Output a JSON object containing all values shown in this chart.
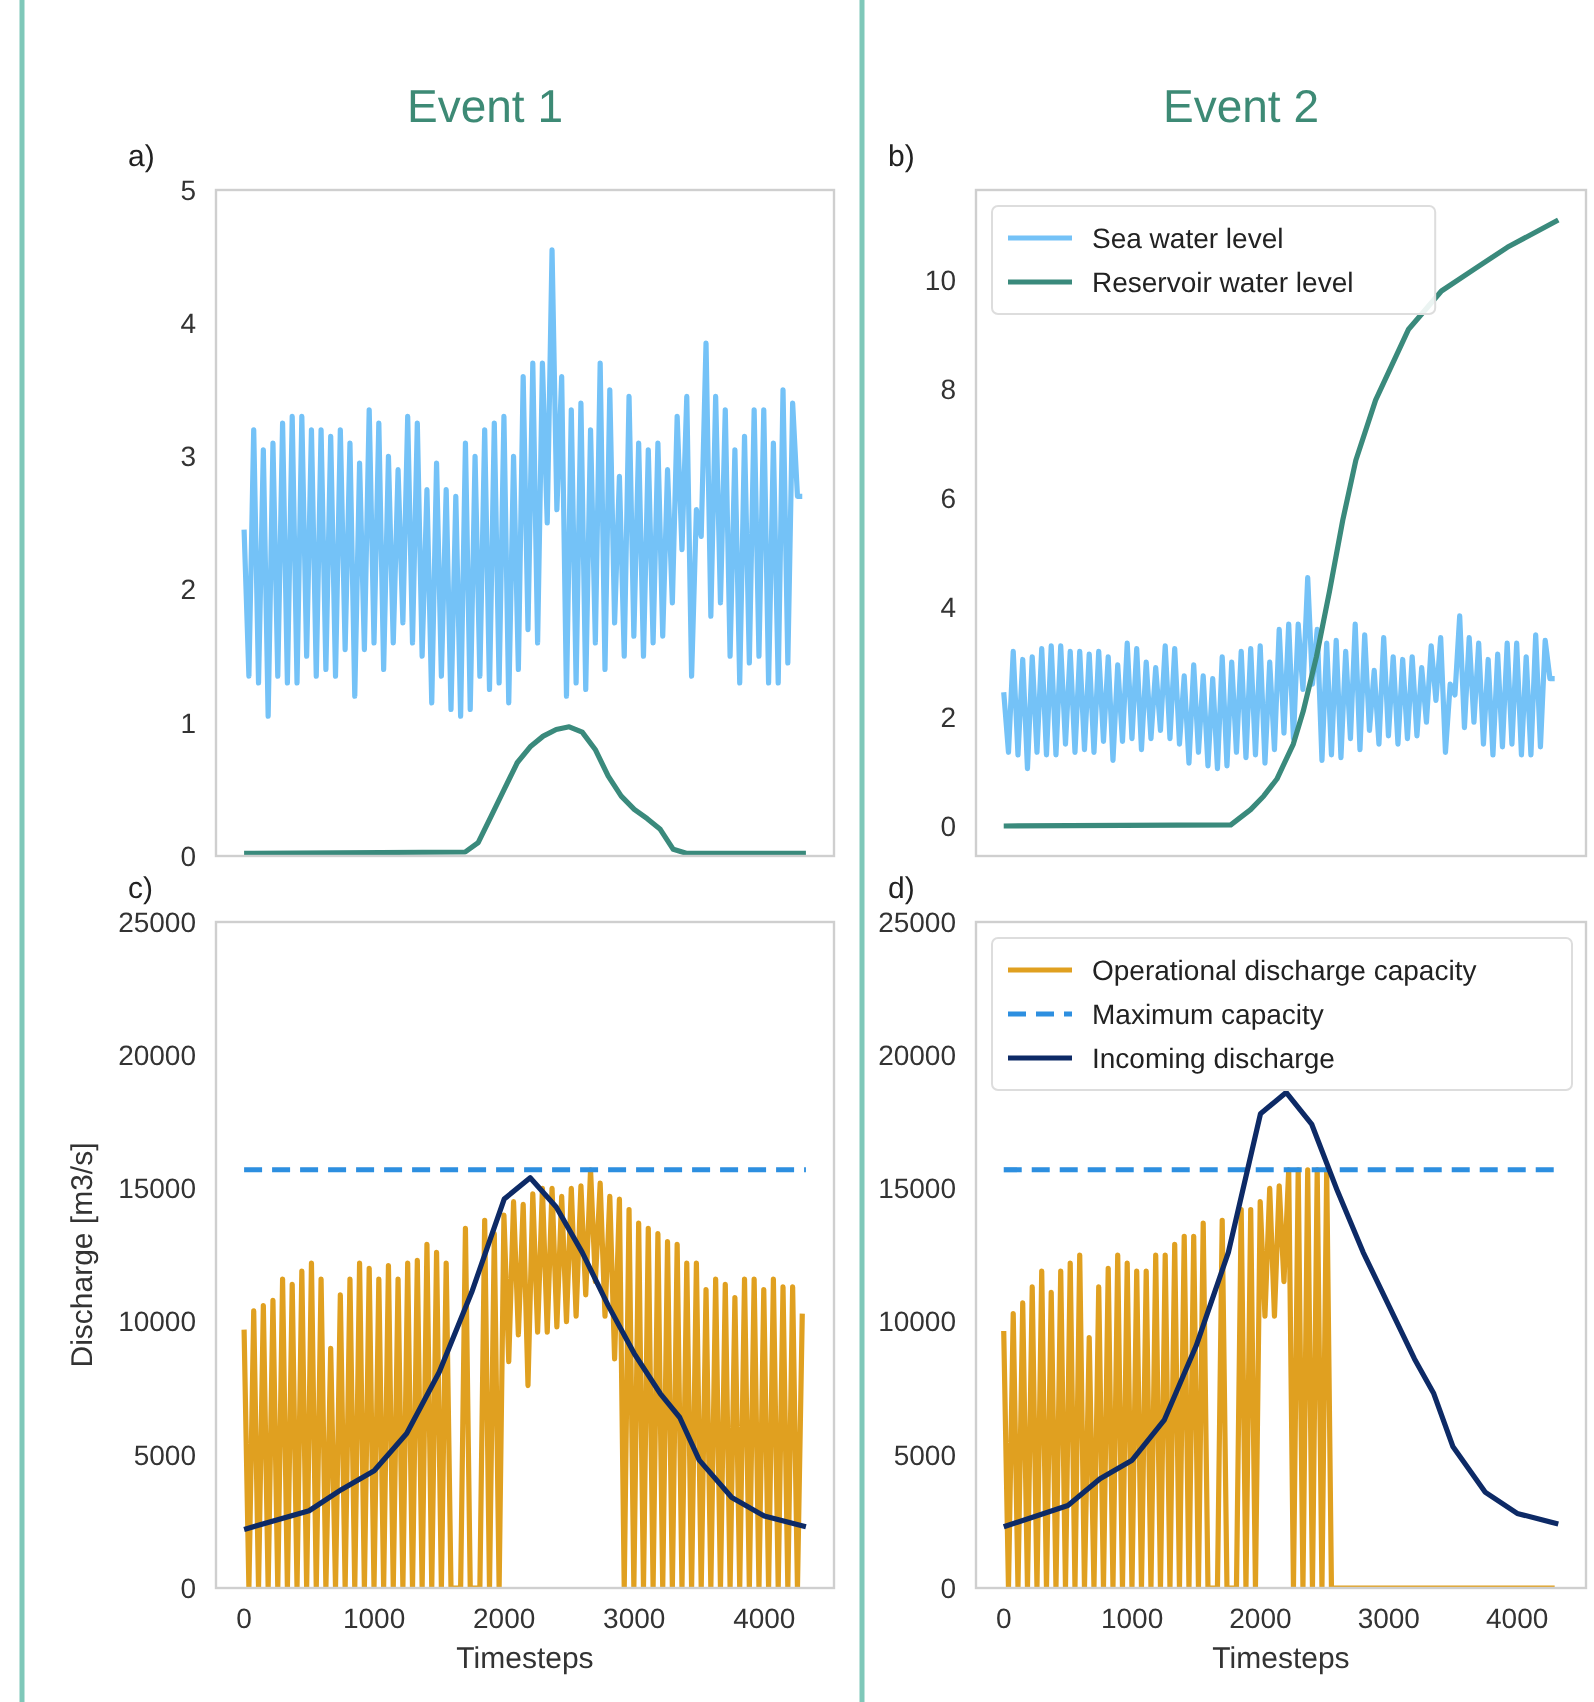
{
  "chart_data": [
    {
      "type": "line",
      "title": "Event 1",
      "annotations": [
        "a)"
      ],
      "xlim": [
        -216,
        4536
      ],
      "ylim": [
        0,
        5
      ],
      "yticks": [
        0,
        1,
        2,
        3,
        4,
        5
      ],
      "tick_labels": "y",
      "grid": false,
      "legend": false,
      "x": [
        0,
        37,
        74,
        111,
        148,
        185,
        222,
        259,
        296,
        333,
        370,
        407,
        444,
        481,
        518,
        555,
        592,
        629,
        666,
        703,
        740,
        777,
        814,
        851,
        888,
        925,
        962,
        999,
        1036,
        1073,
        1110,
        1147,
        1184,
        1221,
        1258,
        1295,
        1332,
        1369,
        1406,
        1443,
        1480,
        1517,
        1554,
        1591,
        1628,
        1665,
        1702,
        1739,
        1776,
        1813,
        1850,
        1887,
        1924,
        1961,
        1998,
        2035,
        2072,
        2109,
        2146,
        2183,
        2220,
        2257,
        2294,
        2331,
        2368,
        2405,
        2442,
        2479,
        2516,
        2553,
        2590,
        2627,
        2664,
        2701,
        2738,
        2775,
        2812,
        2849,
        2886,
        2923,
        2960,
        2997,
        3034,
        3071,
        3108,
        3145,
        3182,
        3219,
        3256,
        3293,
        3330,
        3367,
        3404,
        3441,
        3478,
        3515,
        3552,
        3589,
        3626,
        3663,
        3700,
        3737,
        3774,
        3811,
        3848,
        3885,
        3922,
        3959,
        3996,
        4033,
        4070,
        4107,
        4144,
        4181,
        4218,
        4255,
        4292
      ],
      "series": [
        {
          "color": "#74c2f7",
          "values": [
            2.45,
            1.35,
            3.2,
            1.3,
            3.05,
            1.05,
            3.1,
            1.35,
            3.25,
            1.3,
            3.3,
            1.3,
            3.3,
            1.5,
            3.2,
            1.35,
            3.2,
            1.4,
            3.15,
            1.35,
            3.2,
            1.55,
            3.1,
            1.2,
            2.95,
            1.55,
            3.35,
            1.6,
            3.25,
            1.4,
            3.0,
            1.6,
            2.9,
            1.75,
            3.3,
            1.6,
            3.25,
            1.5,
            2.75,
            1.15,
            2.95,
            1.35,
            2.75,
            1.1,
            2.7,
            1.05,
            3.1,
            1.1,
            3.0,
            1.35,
            3.2,
            1.25,
            3.25,
            1.3,
            3.3,
            1.15,
            3.0,
            1.4,
            3.6,
            1.7,
            3.7,
            1.6,
            3.7,
            2.5,
            4.55,
            2.6,
            3.6,
            1.2,
            3.35,
            1.3,
            3.4,
            1.25,
            3.2,
            1.6,
            3.7,
            1.4,
            3.5,
            1.75,
            2.85,
            1.5,
            3.45,
            1.65,
            3.1,
            1.5,
            3.05,
            1.6,
            3.1,
            1.65,
            2.9,
            1.9,
            3.3,
            2.3,
            3.45,
            1.35,
            2.6,
            2.4,
            3.85,
            1.8,
            3.45,
            1.9,
            3.35,
            1.5,
            3.05,
            1.3,
            3.15,
            1.45,
            3.35,
            1.5,
            3.35,
            1.3,
            3.1,
            1.3,
            3.5,
            1.45,
            3.4,
            2.7,
            2.7
          ]
        },
        {
          "color": "#3a8a7c",
          "x": [
            0,
            1700,
            1800,
            1900,
            2000,
            2100,
            2200,
            2300,
            2400,
            2500,
            2600,
            2700,
            2800,
            2900,
            3000,
            3100,
            3200,
            3300,
            3400,
            4320
          ],
          "values": [
            0.02,
            0.03,
            0.1,
            0.3,
            0.5,
            0.7,
            0.82,
            0.9,
            0.95,
            0.97,
            0.93,
            0.8,
            0.6,
            0.45,
            0.35,
            0.28,
            0.2,
            0.05,
            0.02,
            0.02
          ]
        }
      ]
    },
    {
      "type": "line",
      "title": "Event 2",
      "annotations": [
        "b)"
      ],
      "xlim": [
        -216,
        4536
      ],
      "ylim": [
        -0.55,
        11.65
      ],
      "yticks": [
        0,
        2,
        4,
        6,
        8,
        10
      ],
      "tick_labels": "y",
      "grid": false,
      "legend": "top left",
      "x": [
        0,
        37,
        74,
        111,
        148,
        185,
        222,
        259,
        296,
        333,
        370,
        407,
        444,
        481,
        518,
        555,
        592,
        629,
        666,
        703,
        740,
        777,
        814,
        851,
        888,
        925,
        962,
        999,
        1036,
        1073,
        1110,
        1147,
        1184,
        1221,
        1258,
        1295,
        1332,
        1369,
        1406,
        1443,
        1480,
        1517,
        1554,
        1591,
        1628,
        1665,
        1702,
        1739,
        1776,
        1813,
        1850,
        1887,
        1924,
        1961,
        1998,
        2035,
        2072,
        2109,
        2146,
        2183,
        2220,
        2257,
        2294,
        2331,
        2368,
        2405,
        2442,
        2479,
        2516,
        2553,
        2590,
        2627,
        2664,
        2701,
        2738,
        2775,
        2812,
        2849,
        2886,
        2923,
        2960,
        2997,
        3034,
        3071,
        3108,
        3145,
        3182,
        3219,
        3256,
        3293,
        3330,
        3367,
        3404,
        3441,
        3478,
        3515,
        3552,
        3589,
        3626,
        3663,
        3700,
        3737,
        3774,
        3811,
        3848,
        3885,
        3922,
        3959,
        3996,
        4033,
        4070,
        4107,
        4144,
        4181,
        4218,
        4255,
        4292
      ],
      "series": [
        {
          "name": "Sea water level",
          "color": "#74c2f7",
          "values": [
            2.45,
            1.35,
            3.2,
            1.3,
            3.05,
            1.05,
            3.1,
            1.35,
            3.25,
            1.3,
            3.3,
            1.3,
            3.3,
            1.5,
            3.2,
            1.35,
            3.2,
            1.4,
            3.15,
            1.35,
            3.2,
            1.55,
            3.1,
            1.2,
            2.95,
            1.55,
            3.35,
            1.6,
            3.25,
            1.4,
            3.0,
            1.6,
            2.9,
            1.75,
            3.3,
            1.6,
            3.25,
            1.5,
            2.75,
            1.15,
            2.95,
            1.35,
            2.75,
            1.1,
            2.7,
            1.05,
            3.1,
            1.1,
            3.0,
            1.35,
            3.2,
            1.25,
            3.25,
            1.3,
            3.3,
            1.15,
            3.0,
            1.4,
            3.6,
            1.7,
            3.7,
            1.6,
            3.7,
            2.5,
            4.55,
            2.6,
            3.6,
            1.2,
            3.35,
            1.3,
            3.4,
            1.25,
            3.2,
            1.6,
            3.7,
            1.4,
            3.5,
            1.75,
            2.85,
            1.5,
            3.45,
            1.65,
            3.1,
            1.5,
            3.05,
            1.6,
            3.1,
            1.65,
            2.9,
            1.9,
            3.3,
            2.3,
            3.45,
            1.35,
            2.6,
            2.4,
            3.85,
            1.8,
            3.45,
            1.9,
            3.35,
            1.5,
            3.05,
            1.3,
            3.15,
            1.45,
            3.35,
            1.5,
            3.35,
            1.3,
            3.1,
            1.3,
            3.5,
            1.45,
            3.4,
            2.7,
            2.7
          ]
        },
        {
          "name": "Reservoir water level",
          "color": "#3a8a7c",
          "x": [
            0,
            1769,
            1923,
            2026,
            2128,
            2256,
            2333,
            2436,
            2538,
            2641,
            2743,
            2897,
            3154,
            3410,
            3666,
            3923,
            4320
          ],
          "values": [
            0,
            0.02,
            0.3,
            0.55,
            0.86,
            1.5,
            2.1,
            3.1,
            4.3,
            5.6,
            6.7,
            7.8,
            9.1,
            9.8,
            10.2,
            10.6,
            11.1
          ]
        }
      ]
    },
    {
      "type": "line",
      "annotations": [
        "c)"
      ],
      "xlabel": "Timesteps",
      "ylabel": "Discharge [m3/s]",
      "xlim": [
        -216,
        4536
      ],
      "xticks": [
        0,
        1000,
        2000,
        3000,
        4000
      ],
      "ylim": [
        0,
        25000
      ],
      "yticks": [
        0,
        5000,
        10000,
        15000,
        20000,
        25000
      ],
      "grid": false,
      "legend": false,
      "x": [
        0,
        37,
        74,
        111,
        148,
        185,
        222,
        259,
        296,
        333,
        370,
        407,
        444,
        481,
        518,
        555,
        592,
        629,
        666,
        703,
        740,
        777,
        814,
        851,
        888,
        925,
        962,
        999,
        1036,
        1073,
        1110,
        1147,
        1184,
        1221,
        1258,
        1295,
        1332,
        1369,
        1406,
        1443,
        1480,
        1517,
        1554,
        1591,
        1628,
        1665,
        1702,
        1739,
        1776,
        1813,
        1850,
        1887,
        1924,
        1961,
        1998,
        2035,
        2072,
        2109,
        2146,
        2183,
        2220,
        2257,
        2294,
        2331,
        2368,
        2405,
        2442,
        2479,
        2516,
        2553,
        2590,
        2627,
        2664,
        2701,
        2738,
        2775,
        2812,
        2849,
        2886,
        2923,
        2960,
        2997,
        3034,
        3071,
        3108,
        3145,
        3182,
        3219,
        3256,
        3293,
        3330,
        3367,
        3404,
        3441,
        3478,
        3515,
        3552,
        3589,
        3626,
        3663,
        3700,
        3737,
        3774,
        3811,
        3848,
        3885,
        3922,
        3959,
        3996,
        4033,
        4070,
        4107,
        4144,
        4181,
        4218,
        4255,
        4292
      ],
      "series": [
        {
          "color": "#e0a020",
          "values": [
            9700,
            0,
            10400,
            0,
            10600,
            0,
            10800,
            0,
            11600,
            0,
            11400,
            0,
            11900,
            0,
            12200,
            0,
            11600,
            0,
            9000,
            0,
            11000,
            0,
            11600,
            0,
            12200,
            0,
            12000,
            0,
            11600,
            0,
            12100,
            0,
            11600,
            0,
            12200,
            0,
            12300,
            0,
            12900,
            0,
            12600,
            0,
            12200,
            0,
            0,
            0,
            13500,
            0,
            0,
            0,
            13800,
            0,
            13300,
            0,
            14000,
            8500,
            14500,
            9500,
            14400,
            7600,
            14800,
            9600,
            15000,
            9600,
            15000,
            9800,
            14700,
            10000,
            15000,
            10200,
            15100,
            11000,
            15700,
            11500,
            15200,
            10200,
            14700,
            8600,
            14600,
            0,
            14200,
            0,
            13700,
            0,
            13500,
            0,
            13300,
            0,
            13000,
            0,
            12900,
            0,
            12200,
            0,
            12200,
            0,
            11200,
            0,
            11600,
            0,
            11400,
            0,
            10900,
            0,
            11600,
            0,
            11600,
            0,
            11200,
            0,
            11600,
            0,
            11300,
            0,
            11300,
            0,
            10300
          ]
        },
        {
          "color": "#2d8fe0",
          "line_style": "dashed",
          "x": [
            0,
            4320
          ],
          "values": [
            15700,
            15700
          ]
        },
        {
          "color": "#0d2a66",
          "x": [
            0,
            500,
            750,
            1000,
            1250,
            1500,
            1750,
            2000,
            2200,
            2400,
            2600,
            2800,
            3000,
            3200,
            3350,
            3500,
            3750,
            4000,
            4320
          ],
          "values": [
            2200,
            2900,
            3700,
            4400,
            5800,
            8100,
            11100,
            14600,
            15400,
            14300,
            12600,
            10600,
            8800,
            7300,
            6400,
            4800,
            3400,
            2700,
            2300
          ]
        }
      ]
    },
    {
      "type": "line",
      "annotations": [
        "d)"
      ],
      "xlabel": "Timesteps",
      "xlim": [
        -216,
        4536
      ],
      "xticks": [
        0,
        1000,
        2000,
        3000,
        4000
      ],
      "ylim": [
        0,
        25000
      ],
      "yticks": [
        0,
        5000,
        10000,
        15000,
        20000,
        25000
      ],
      "grid": false,
      "legend": "top left",
      "x": [
        0,
        37,
        74,
        111,
        148,
        185,
        222,
        259,
        296,
        333,
        370,
        407,
        444,
        481,
        518,
        555,
        592,
        629,
        666,
        703,
        740,
        777,
        814,
        851,
        888,
        925,
        962,
        999,
        1036,
        1073,
        1110,
        1147,
        1184,
        1221,
        1258,
        1295,
        1332,
        1369,
        1406,
        1443,
        1480,
        1517,
        1554,
        1591,
        1628,
        1665,
        1702,
        1739,
        1776,
        1813,
        1850,
        1887,
        1924,
        1961,
        1998,
        2035,
        2072,
        2109,
        2146,
        2183,
        2220,
        2257,
        2294,
        2331,
        2368,
        2405,
        2442,
        2479,
        2516,
        2553,
        2590,
        2627,
        2664,
        2701,
        2738,
        2775,
        2812,
        2849,
        2886,
        2923,
        2960,
        2997,
        3034,
        3071,
        3108,
        3145,
        3182,
        3219,
        3256,
        3293,
        3330,
        3367,
        3404,
        3441,
        3478,
        3515,
        3552,
        3589,
        3626,
        3663,
        3700,
        3737,
        3774,
        3811,
        3848,
        3885,
        3922,
        3959,
        3996,
        4033,
        4070,
        4107,
        4144,
        4181,
        4218,
        4255,
        4292
      ],
      "series": [
        {
          "name": "Operational discharge capacity",
          "color": "#e0a020",
          "values": [
            9650,
            0,
            10300,
            0,
            10700,
            0,
            11300,
            0,
            11900,
            0,
            11100,
            0,
            11900,
            0,
            12200,
            0,
            12500,
            0,
            9400,
            0,
            11300,
            0,
            12000,
            0,
            12500,
            0,
            12200,
            0,
            11900,
            0,
            11900,
            0,
            12500,
            0,
            12500,
            0,
            12900,
            0,
            13200,
            0,
            13200,
            0,
            13700,
            0,
            0,
            0,
            13800,
            0,
            0,
            0,
            14200,
            0,
            14200,
            0,
            14500,
            10200,
            15000,
            10200,
            15100,
            11500,
            15700,
            0,
            15700,
            0,
            15700,
            0,
            15700,
            0,
            15700,
            0,
            0,
            0,
            0,
            0,
            0,
            0,
            0,
            0,
            0,
            0,
            0,
            0,
            0,
            0,
            0,
            0,
            0,
            0,
            0,
            0,
            0,
            0,
            0,
            0,
            0,
            0,
            0,
            0,
            0,
            0,
            0,
            0,
            0,
            0,
            0,
            0,
            0,
            0,
            0,
            0,
            0,
            0,
            0,
            0,
            0,
            0,
            0
          ]
        },
        {
          "name": "Maximum capacity",
          "color": "#2d8fe0",
          "line_style": "dashed",
          "x": [
            0,
            4320
          ],
          "values": [
            15700,
            15700
          ]
        },
        {
          "name": "Incoming discharge",
          "color": "#0d2a66",
          "x": [
            0,
            500,
            750,
            1000,
            1250,
            1500,
            1750,
            2000,
            2200,
            2400,
            2600,
            2800,
            3000,
            3200,
            3350,
            3500,
            3750,
            4000,
            4320
          ],
          "values": [
            2300,
            3100,
            4100,
            4800,
            6300,
            9100,
            12600,
            17800,
            18600,
            17400,
            14900,
            12600,
            10600,
            8600,
            7300,
            5300,
            3600,
            2800,
            2400
          ]
        }
      ]
    }
  ]
}
